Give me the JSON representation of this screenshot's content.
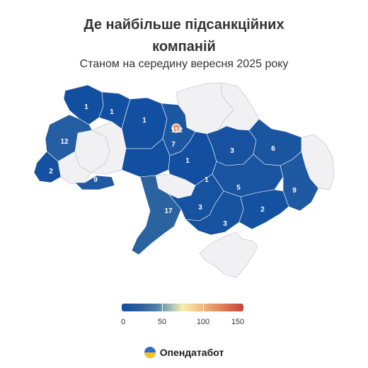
{
  "header": {
    "title_line1": "Де найбільше підсанкційних",
    "title_line2": "компаній",
    "subtitle": "Станом на середину вересня 2025 року"
  },
  "map": {
    "regions": [
      {
        "id": "volyn",
        "value": 1
      },
      {
        "id": "rivne",
        "value": 1
      },
      {
        "id": "zhytomyr",
        "value": 1
      },
      {
        "id": "kyiv-oblast",
        "value": 7
      },
      {
        "id": "kyiv-city",
        "value": 112
      },
      {
        "id": "lviv",
        "value": 12
      },
      {
        "id": "zakarpattia",
        "value": 2
      },
      {
        "id": "chernivtsi",
        "value": 9
      },
      {
        "id": "vinnytsia",
        "value": 1
      },
      {
        "id": "cherkasy",
        "value": 1
      },
      {
        "id": "poltava",
        "value": 3
      },
      {
        "id": "kharkiv",
        "value": 6
      },
      {
        "id": "dnipropetrovsk",
        "value": 5
      },
      {
        "id": "donetsk",
        "value": 9
      },
      {
        "id": "odesa",
        "value": 17
      },
      {
        "id": "mykolaiv",
        "value": 3
      },
      {
        "id": "kherson",
        "value": 3
      },
      {
        "id": "zaporizhzhia",
        "value": 2
      }
    ],
    "no_data_regions": [
      "chernihiv",
      "sumy",
      "ternopil",
      "ivano-frankivsk",
      "khmelnytskyi",
      "kirovohrad",
      "luhansk",
      "crimea"
    ],
    "colors": {
      "low": "#114ea0",
      "mid_low": "#4b7da3",
      "mid": "#f7efb0",
      "high": "#c9433a",
      "no_data": "#f1f1f4",
      "border": "#c8cbd6"
    }
  },
  "legend": {
    "ticks": [
      "0",
      "50",
      "100",
      "150"
    ],
    "min": 0,
    "max": 150
  },
  "brand": {
    "name": "Опендатабот"
  }
}
